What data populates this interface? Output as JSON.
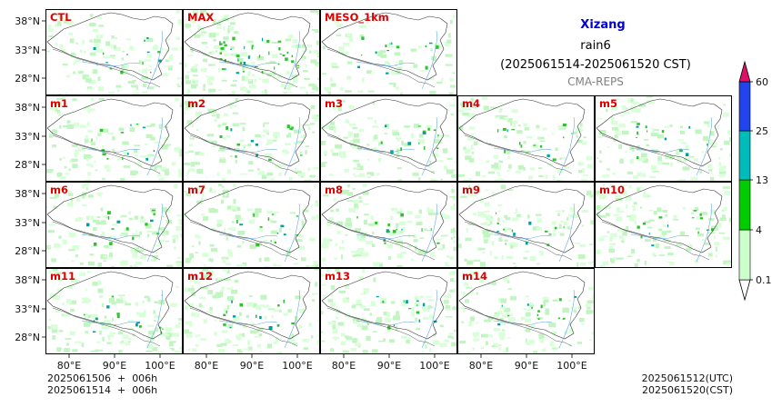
{
  "header": {
    "region": "Xizang",
    "variable": "rain6",
    "period": "(2025061514-2025061520 CST)",
    "source": "CMA-REPS",
    "region_color": "#0000cc"
  },
  "panels": [
    {
      "label": "CTL",
      "row": 0,
      "col": 0
    },
    {
      "label": "MAX",
      "row": 0,
      "col": 1
    },
    {
      "label": "MESO_1km",
      "row": 0,
      "col": 2
    },
    {
      "label": "m1",
      "row": 1,
      "col": 0
    },
    {
      "label": "m2",
      "row": 1,
      "col": 1
    },
    {
      "label": "m3",
      "row": 1,
      "col": 2
    },
    {
      "label": "m4",
      "row": 1,
      "col": 3
    },
    {
      "label": "m5",
      "row": 1,
      "col": 4
    },
    {
      "label": "m6",
      "row": 2,
      "col": 0
    },
    {
      "label": "m7",
      "row": 2,
      "col": 1
    },
    {
      "label": "m8",
      "row": 2,
      "col": 2
    },
    {
      "label": "m9",
      "row": 2,
      "col": 3
    },
    {
      "label": "m10",
      "row": 2,
      "col": 4
    },
    {
      "label": "m11",
      "row": 3,
      "col": 0
    },
    {
      "label": "m12",
      "row": 3,
      "col": 1
    },
    {
      "label": "m13",
      "row": 3,
      "col": 2
    },
    {
      "label": "m14",
      "row": 3,
      "col": 3
    }
  ],
  "lat_ticks": [
    "38°N",
    "33°N",
    "28°N"
  ],
  "lon_ticks": [
    "80°E",
    "90°E",
    "100°E"
  ],
  "colorbar": {
    "levels": [
      "0.1",
      "4",
      "13",
      "25",
      "60"
    ],
    "colors": [
      "#ccffcc",
      "#00cc00",
      "#00bbbb",
      "#2244ee",
      "#dd1166"
    ]
  },
  "footer": {
    "init_line1": "2025061506  +  006h",
    "init_line2": "2025061514  +  006h",
    "valid_utc": "2025061512(UTC)",
    "valid_cst": "2025061520(CST)"
  }
}
